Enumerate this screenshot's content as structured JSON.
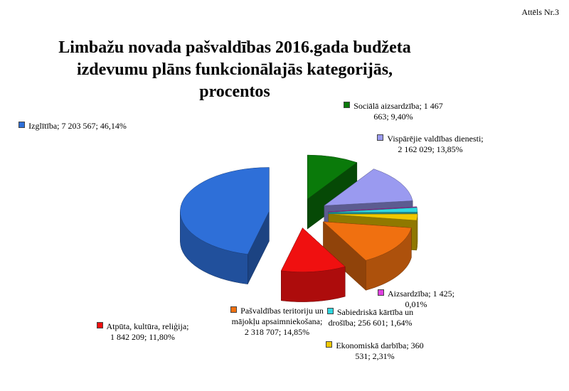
{
  "figure_label": "Attēls Nr.3",
  "chart_data": {
    "type": "pie3d",
    "title": "Limbažu novada pašvaldības 2016.gada budžeta izdevumu plāns funkcionālajās kategorijās, procentos",
    "values": [
      1467663,
      2162029,
      1425,
      256601,
      360531,
      2318707,
      1842209,
      7203567
    ],
    "percents": [
      9.4,
      13.85,
      0.01,
      1.64,
      2.31,
      14.85,
      11.8,
      46.14
    ],
    "value_labels": [
      "Sociālā aizsardzība; 1 467 663; 9,40%",
      "Vispārējie valdības dienesti; 2 162 029; 13,85%",
      "Aizsardzība; 1 425; 0,01%",
      "Sabiedriskā kārtība un drošība; 256 601; 1,64%",
      "Ekonomiskā darbība; 360 531; 2,31%",
      "Pašvaldības teritoriju un mājokļu apsaimniekošana; 2 318 707; 14,85%",
      "Atpūta, kultūra, reliģija; 1 842 209; 11,80%",
      "Izglītība; 7 203 567; 46,14%"
    ],
    "colors": [
      "#0a7a0a",
      "#9a9af0",
      "#e040e0",
      "#30d8e0",
      "#f0c800",
      "#f07010",
      "#f01010",
      "#2e6fd8"
    ]
  }
}
